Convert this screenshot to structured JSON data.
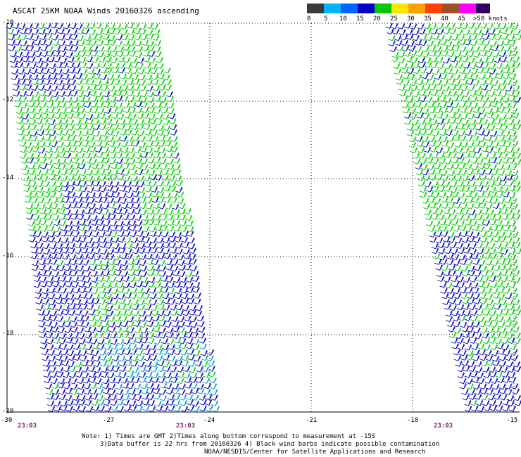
{
  "header": {
    "title": "ASCAT 25KM NOAA Winds 20160326 ascending"
  },
  "legend": {
    "labels": [
      "0",
      "5",
      "10",
      "15",
      "20",
      "25",
      "30",
      "35",
      "40",
      "45",
      ">50 knots"
    ],
    "colors": [
      "#4a4a4a",
      "#9a9a9a",
      "#00b4ff",
      "#0064ff",
      "#0000c8",
      "#00d000",
      "#ffe600",
      "#ffa000",
      "#ff4000",
      "#c80000",
      "#8c4614",
      "#ff00ff",
      "#a000c0",
      "#300060"
    ]
  },
  "map": {
    "lat_labels": [
      "-10",
      "-12",
      "-14",
      "-16",
      "-18",
      "-20"
    ],
    "lon_labels": [
      "-30",
      "-27",
      "-24",
      "-21",
      "-18",
      "-15"
    ],
    "pass_times": [
      "23:03",
      "23:03",
      "23:03"
    ],
    "barb_colors": {
      "low": "#0000c8",
      "mid": "#00cc00",
      "teal": "#0098c8"
    }
  },
  "notes": {
    "line1": "Note: 1) Times are GMT 2)Times along bottom correspond to measurement at -15S",
    "line2": "3)Data buffer is 22 hrs from 20160326 4) Black wind barbs indicate possible contamination",
    "line3": "NOAA/NESDIS/Center for Satellite Applications and Research"
  }
}
